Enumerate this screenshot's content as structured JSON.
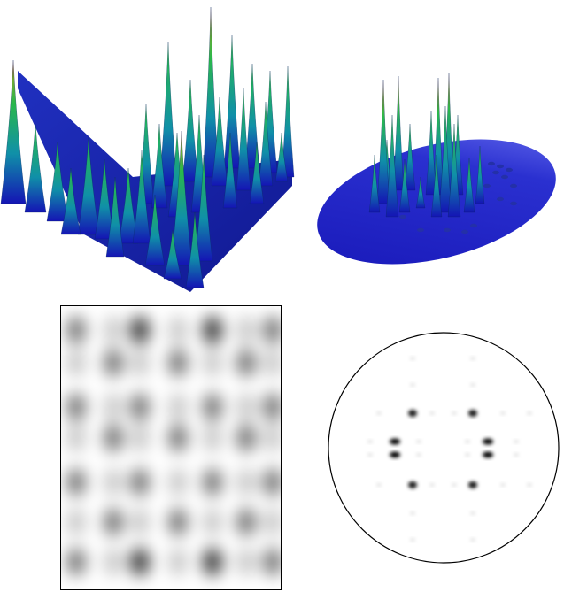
{
  "figure": {
    "panels": [
      {
        "id": "surface-rectangular",
        "kind": "3d-surface",
        "colormap": [
          "#1010c0",
          "#10a0a0",
          "#30c030",
          "#c02020"
        ]
      },
      {
        "id": "surface-circular",
        "kind": "3d-surface",
        "colormap": [
          "#1010c0",
          "#10a0a0",
          "#30c030",
          "#c02020"
        ]
      },
      {
        "id": "density-rectangular",
        "kind": "grayscale-density"
      },
      {
        "id": "density-circular",
        "kind": "grayscale-density"
      }
    ]
  }
}
